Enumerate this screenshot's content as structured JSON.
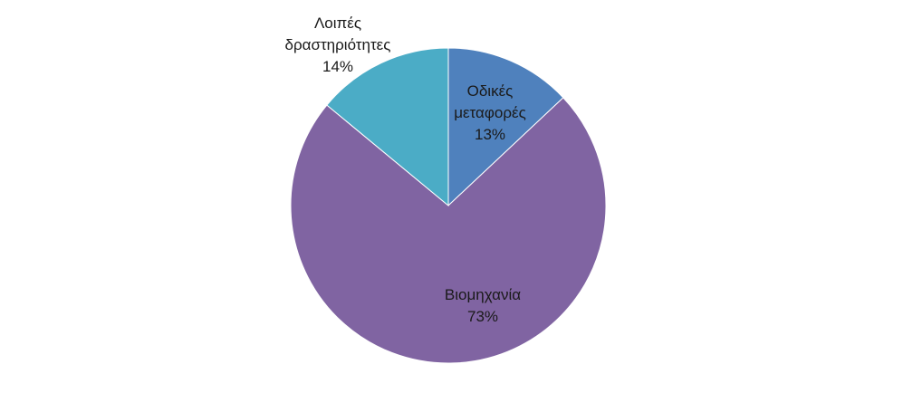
{
  "chart_data": {
    "type": "pie",
    "start_angle_deg": 0,
    "direction": "clockwise",
    "slices": [
      {
        "label_lines": [
          "Οδικές",
          "μεταφορές"
        ],
        "percent_label": "13%",
        "value": 13,
        "color": "#4f81bd"
      },
      {
        "label_lines": [
          "Βιομηχανία"
        ],
        "percent_label": "73%",
        "value": 73,
        "color": "#8064a2"
      },
      {
        "label_lines": [
          "Λοιπές",
          "δραστηριότητες"
        ],
        "percent_label": "14%",
        "value": 14,
        "color": "#4bacc6"
      }
    ]
  }
}
